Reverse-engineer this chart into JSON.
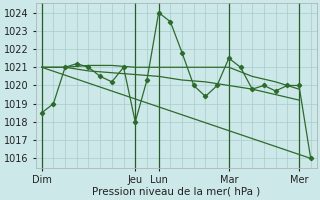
{
  "background_color": "#cce8e8",
  "grid_color": "#aacccc",
  "line_color": "#2d6b2d",
  "ylim": [
    1015.5,
    1024.5
  ],
  "yticks": [
    1016,
    1017,
    1018,
    1019,
    1020,
    1021,
    1022,
    1023,
    1024
  ],
  "day_labels": [
    "Dim",
    "Jeu",
    "Lun",
    "Mar",
    "Mer"
  ],
  "day_positions": [
    0,
    8,
    10,
    16,
    22
  ],
  "xlabel": "Pression niveau de la mer( hPa )",
  "series": [
    {
      "x": [
        0,
        1,
        2,
        3,
        4,
        5,
        6,
        7,
        8,
        9,
        10,
        11,
        12,
        13,
        14,
        15,
        16,
        17,
        18,
        19,
        20,
        21,
        22,
        23
      ],
      "y": [
        1018.5,
        1019,
        1021,
        1021.2,
        1021,
        1020.5,
        1020.2,
        1021,
        1018,
        1020.3,
        1024,
        1023.5,
        1021.8,
        1020,
        1019.4,
        1020,
        1021.5,
        1021,
        1019.8,
        1020,
        1019.7,
        1020,
        1020,
        1016
      ],
      "has_markers": true
    },
    {
      "x": [
        0,
        2,
        4,
        6,
        8,
        10,
        12,
        14,
        16,
        18,
        20,
        22
      ],
      "y": [
        1021,
        1021,
        1021.1,
        1021.1,
        1021.0,
        1021.0,
        1021.0,
        1021.0,
        1021.0,
        1020.5,
        1020.2,
        1019.8
      ],
      "has_markers": false
    },
    {
      "x": [
        0,
        2,
        4,
        6,
        8,
        10,
        12,
        14,
        16,
        18,
        20,
        22
      ],
      "y": [
        1021,
        1021,
        1020.8,
        1020.7,
        1020.6,
        1020.5,
        1020.3,
        1020.2,
        1020.0,
        1019.8,
        1019.5,
        1019.2
      ],
      "has_markers": false
    },
    {
      "x": [
        0,
        23
      ],
      "y": [
        1021.0,
        1016.0
      ],
      "has_markers": false
    }
  ],
  "figsize": [
    3.2,
    2.0
  ],
  "dpi": 100,
  "label_fontsize": 7.5,
  "tick_fontsize": 7
}
